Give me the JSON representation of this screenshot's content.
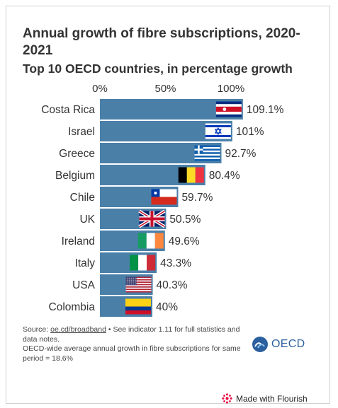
{
  "title": "Annual growth of fibre subscriptions, 2020-2021",
  "subtitle": "Top 10 OECD countries, in percentage growth",
  "footer": {
    "source_prefix": "Source: ",
    "source_link": "oe.cd/broadband",
    "source_suffix": " • See indicator 1.11 for full statistics and data notes.",
    "note": "OECD-wide average annual growth in fibre subscriptions for same period = 18.6%",
    "logo": "OECD",
    "made_with": "Made with Flourish"
  },
  "colors": {
    "bar": "#4a7fa8",
    "axis_text": "#333333",
    "logo": "#2b5f9e",
    "flourish": "#e8003a"
  },
  "chart_data": {
    "type": "bar",
    "orientation": "horizontal",
    "categories": [
      "Costa Rica",
      "Israel",
      "Greece",
      "Belgium",
      "Chile",
      "UK",
      "Ireland",
      "Italy",
      "USA",
      "Colombia"
    ],
    "values": [
      109.1,
      101,
      92.7,
      80.4,
      59.7,
      50.5,
      49.6,
      43.3,
      40.3,
      40
    ],
    "data_labels": [
      "109.1%",
      "101%",
      "92.7%",
      "80.4%",
      "59.7%",
      "50.5%",
      "49.6%",
      "43.3%",
      "40.3%",
      "40%"
    ],
    "flags": [
      "costa-rica-flag",
      "israel-flag",
      "greece-flag",
      "belgium-flag",
      "chile-flag",
      "uk-flag",
      "ireland-flag",
      "italy-flag",
      "usa-flag",
      "colombia-flag"
    ],
    "xticks": [
      "0%",
      "50%",
      "100%"
    ],
    "xtick_values": [
      0,
      50,
      100
    ],
    "xlim": [
      0,
      109.1
    ],
    "axis_position": "top",
    "grid": false
  }
}
